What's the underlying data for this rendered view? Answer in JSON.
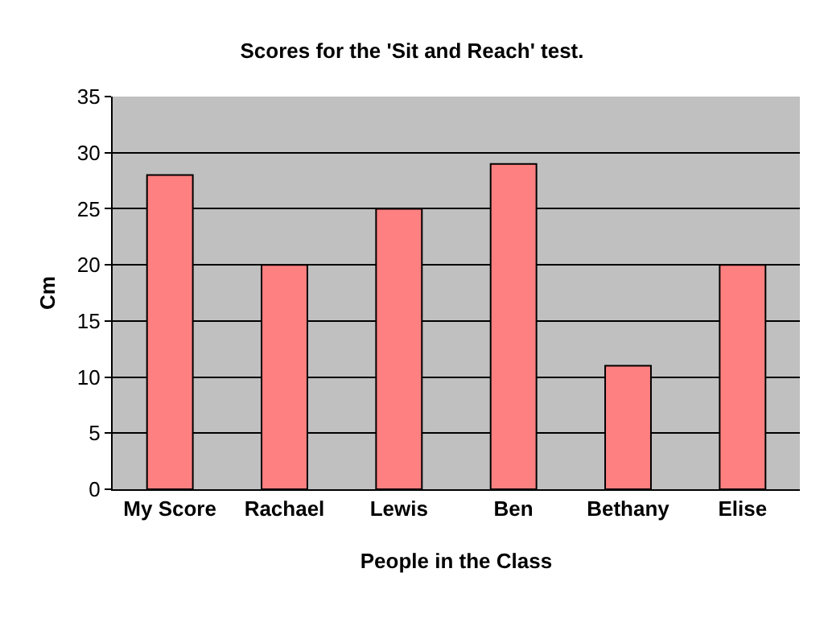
{
  "chart_data": {
    "type": "bar",
    "title": "Scores for the 'Sit and Reach' test.",
    "xlabel": "People in the Class",
    "ylabel": "Cm",
    "categories": [
      "My Score",
      "Rachael",
      "Lewis",
      "Ben",
      "Bethany",
      "Elise"
    ],
    "values": [
      28,
      20,
      25,
      29,
      11,
      20
    ],
    "color": "#ff8080",
    "ylim": [
      0,
      35
    ],
    "yticks": [
      0,
      5,
      10,
      15,
      20,
      25,
      30,
      35
    ],
    "grid": "y"
  }
}
